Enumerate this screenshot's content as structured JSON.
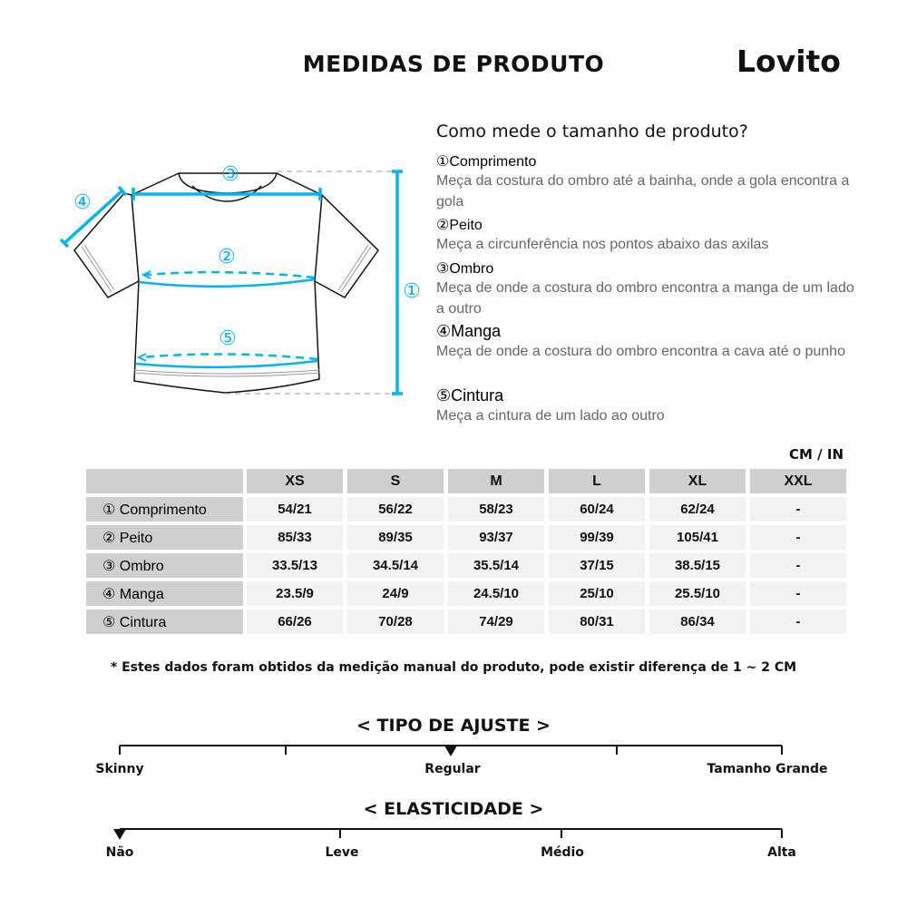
{
  "header": {
    "title": "MEDIDAS DE PRODUTO",
    "brand": "Lovito"
  },
  "diagram": {
    "labels": [
      "①",
      "②",
      "③",
      "④",
      "⑤"
    ],
    "accent": "#00b4ef"
  },
  "guide": {
    "question": "Como mede o tamanho de produto?",
    "items": [
      {
        "heading": "①Comprimento",
        "desc": "Meça da costura do ombro até a bainha, onde a gola encontra a gola"
      },
      {
        "heading": "②Peito",
        "desc": "Meça a circunferência nos pontos abaixo das axilas"
      },
      {
        "heading": "③Ombro",
        "desc": "Meça de onde a costura do ombro encontra a manga de um lado a outro"
      },
      {
        "heading": "④Manga",
        "desc": "Meça de onde a costura do ombro encontra a cava até o punho"
      },
      {
        "heading": "⑤Cintura",
        "desc": "Meça a cintura de um lado ao outro"
      }
    ]
  },
  "table": {
    "unit": "CM / IN",
    "columns": [
      "XS",
      "S",
      "M",
      "L",
      "XL",
      "XXL"
    ],
    "rows": [
      {
        "label": "① Comprimento",
        "values": [
          "54/21",
          "56/22",
          "58/23",
          "60/24",
          "62/24",
          "-"
        ]
      },
      {
        "label": "② Peito",
        "values": [
          "85/33",
          "89/35",
          "93/37",
          "99/39",
          "105/41",
          "-"
        ]
      },
      {
        "label": "③ Ombro",
        "values": [
          "33.5/13",
          "34.5/14",
          "35.5/14",
          "37/15",
          "38.5/15",
          "-"
        ]
      },
      {
        "label": "④ Manga",
        "values": [
          "23.5/9",
          "24/9",
          "24.5/10",
          "25/10",
          "25.5/10",
          "-"
        ]
      },
      {
        "label": "⑤ Cintura",
        "values": [
          "66/26",
          "70/28",
          "74/29",
          "80/31",
          "86/34",
          "-"
        ]
      }
    ]
  },
  "note": "* Estes dados foram obtidos da medição manual do produto, pode existir diferença de 1 ~ 2 CM",
  "fit": {
    "title": "< TIPO DE AJUSTE >",
    "labels": [
      "Skinny",
      "Regular",
      "Tamanho Grande"
    ],
    "selected": "Regular"
  },
  "elasticity": {
    "title": "< ELASTICIDADE >",
    "labels": [
      "Não",
      "Leve",
      "Médio",
      "Alta"
    ],
    "selected": "Não"
  }
}
